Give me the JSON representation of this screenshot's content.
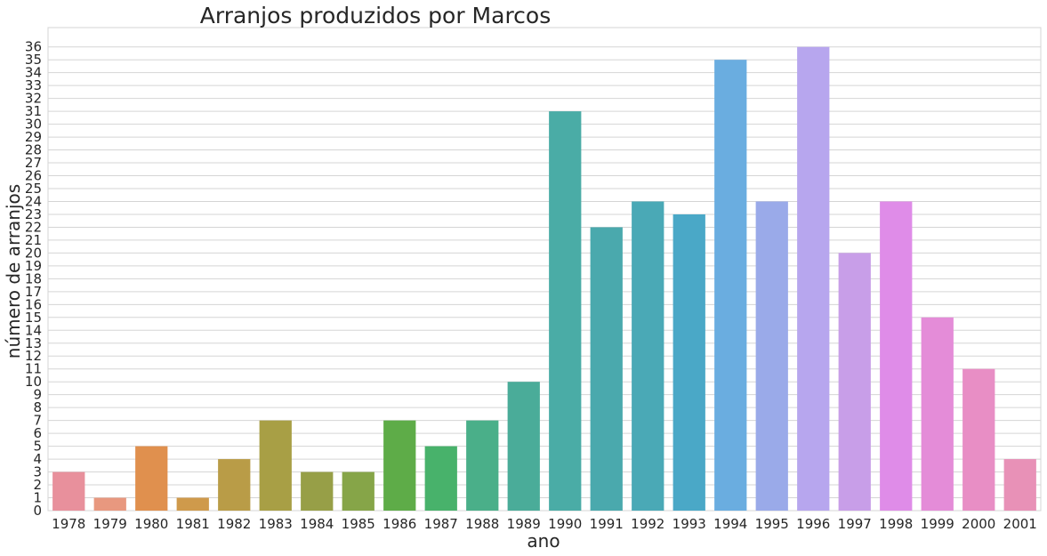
{
  "chart_data": {
    "type": "bar",
    "title": "Arranjos produzidos por Marcos",
    "xlabel": "ano",
    "ylabel": "número de arranjos",
    "categories": [
      "1978",
      "1979",
      "1980",
      "1981",
      "1982",
      "1983",
      "1984",
      "1985",
      "1986",
      "1987",
      "1988",
      "1989",
      "1990",
      "1991",
      "1992",
      "1993",
      "1994",
      "1995",
      "1996",
      "1997",
      "1998",
      "1999",
      "2000",
      "2001"
    ],
    "values": [
      3,
      1,
      5,
      1,
      4,
      7,
      3,
      3,
      7,
      5,
      7,
      10,
      31,
      22,
      24,
      23,
      35,
      24,
      36,
      20,
      24,
      15,
      11,
      4
    ],
    "colors": [
      "#e8909c",
      "#e8987f",
      "#e0904e",
      "#cf9a4b",
      "#b99c47",
      "#a89f45",
      "#979f47",
      "#86a548",
      "#5eac48",
      "#48b26b",
      "#4aaf89",
      "#4aac99",
      "#4aaca6",
      "#4aa9ad",
      "#4aa9b6",
      "#4aa8c7",
      "#6aade0",
      "#9aaae9",
      "#b7a6ee",
      "#c89ee8",
      "#df8ce8",
      "#e48cd8",
      "#e88ec5",
      "#e891b7"
    ],
    "yticks": [
      0,
      1,
      2,
      3,
      4,
      5,
      6,
      7,
      8,
      9,
      10,
      11,
      12,
      13,
      14,
      15,
      16,
      17,
      18,
      19,
      20,
      21,
      22,
      23,
      24,
      25,
      26,
      27,
      28,
      29,
      30,
      31,
      32,
      33,
      34,
      35,
      36
    ],
    "ylim": [
      0,
      37.5
    ],
    "grid": true,
    "legend": "none"
  }
}
